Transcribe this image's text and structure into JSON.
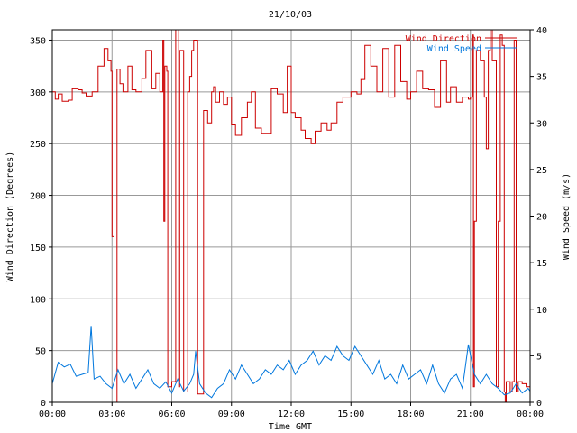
{
  "chart_data": {
    "type": "line",
    "title": "21/10/03",
    "xlabel": "Time GMT",
    "ylabel": "Wind Direction (Degrees)",
    "y2label": "Wind Speed (m/s)",
    "x_ticks": [
      "00:00",
      "03:00",
      "06:00",
      "09:00",
      "12:00",
      "15:00",
      "18:00",
      "21:00",
      "00:00"
    ],
    "x_range_hours": [
      0,
      24
    ],
    "ylim": [
      0,
      360
    ],
    "y_ticks": [
      "0",
      "50",
      "100",
      "150",
      "200",
      "250",
      "300",
      "350"
    ],
    "y2lim": [
      0,
      40
    ],
    "y2_ticks": [
      "0",
      "5",
      "10",
      "15",
      "20",
      "25",
      "30",
      "35",
      "40"
    ],
    "grid": true,
    "legend_position": "top-right",
    "colors": {
      "direction": "#cc0000",
      "speed": "#0077dd",
      "grid": "#999999"
    },
    "series": [
      {
        "name": "Wind Direction",
        "axis": "left",
        "style": "step",
        "x": [
          0,
          0.15,
          0.3,
          0.5,
          0.8,
          1.0,
          1.3,
          1.5,
          1.7,
          2.0,
          2.3,
          2.6,
          2.8,
          2.95,
          3.0,
          3.1,
          3.2,
          3.25,
          3.4,
          3.55,
          3.6,
          3.8,
          4.0,
          4.2,
          4.5,
          4.7,
          5.0,
          5.2,
          5.4,
          5.55,
          5.6,
          5.65,
          5.75,
          5.8,
          6.0,
          6.2,
          6.35,
          6.4,
          6.6,
          6.8,
          6.9,
          7.0,
          7.1,
          7.3,
          7.6,
          7.8,
          8.0,
          8.1,
          8.2,
          8.4,
          8.6,
          8.8,
          9.0,
          9.2,
          9.5,
          9.8,
          10.0,
          10.2,
          10.5,
          10.8,
          11.0,
          11.3,
          11.6,
          11.8,
          12.0,
          12.2,
          12.5,
          12.7,
          13.0,
          13.2,
          13.5,
          13.8,
          14.0,
          14.3,
          14.6,
          15.0,
          15.3,
          15.5,
          15.7,
          16.0,
          16.3,
          16.6,
          16.9,
          17.2,
          17.5,
          17.8,
          18.0,
          18.3,
          18.6,
          18.9,
          19.2,
          19.5,
          19.8,
          20.0,
          20.3,
          20.6,
          20.8,
          20.9,
          21.0,
          21.1,
          21.15,
          21.2,
          21.3,
          21.5,
          21.7,
          21.8,
          21.9,
          22.0,
          22.1,
          22.3,
          22.4,
          22.5,
          22.6,
          22.7,
          22.75,
          22.8,
          23.0,
          23.1,
          23.2,
          23.3,
          23.4,
          23.6,
          23.8,
          24.0
        ],
        "values": [
          300,
          293,
          298,
          291,
          292,
          303,
          302,
          299,
          296,
          300,
          325,
          342,
          330,
          320,
          160,
          0,
          0,
          322,
          308,
          300,
          300,
          325,
          302,
          300,
          313,
          340,
          303,
          318,
          300,
          350,
          175,
          325,
          320,
          15,
          20,
          360,
          15,
          340,
          10,
          300,
          315,
          340,
          350,
          8,
          282,
          270,
          300,
          305,
          290,
          300,
          288,
          295,
          268,
          258,
          275,
          290,
          300,
          265,
          260,
          260,
          303,
          298,
          280,
          325,
          280,
          275,
          263,
          255,
          250,
          262,
          270,
          263,
          270,
          290,
          295,
          300,
          298,
          312,
          345,
          325,
          300,
          342,
          295,
          345,
          310,
          293,
          300,
          320,
          303,
          302,
          285,
          330,
          290,
          305,
          290,
          295,
          295,
          293,
          295,
          355,
          15,
          175,
          340,
          330,
          295,
          245,
          340,
          360,
          330,
          15,
          175,
          355,
          345,
          10,
          0,
          20,
          10,
          20,
          350,
          10,
          20,
          18,
          15,
          18
        ]
      },
      {
        "name": "Wind Speed",
        "axis": "right",
        "style": "line",
        "x": [
          0,
          0.3,
          0.6,
          0.9,
          1.2,
          1.5,
          1.8,
          1.95,
          2.1,
          2.4,
          2.7,
          3.0,
          3.3,
          3.6,
          3.9,
          4.2,
          4.5,
          4.8,
          5.1,
          5.4,
          5.7,
          6.0,
          6.3,
          6.6,
          6.9,
          7.1,
          7.2,
          7.4,
          7.7,
          8.0,
          8.3,
          8.6,
          8.9,
          9.2,
          9.5,
          9.8,
          10.1,
          10.4,
          10.7,
          11.0,
          11.3,
          11.6,
          11.9,
          12.2,
          12.5,
          12.8,
          13.1,
          13.4,
          13.7,
          14.0,
          14.3,
          14.6,
          14.9,
          15.2,
          15.5,
          15.8,
          16.1,
          16.4,
          16.7,
          17.0,
          17.3,
          17.6,
          17.9,
          18.2,
          18.5,
          18.8,
          19.1,
          19.4,
          19.7,
          20.0,
          20.3,
          20.6,
          20.9,
          21.2,
          21.5,
          21.8,
          22.1,
          22.4,
          22.7,
          23.0,
          23.3,
          23.6,
          23.9,
          24.0
        ],
        "values": [
          2.0,
          4.3,
          3.8,
          4.1,
          2.8,
          3.0,
          3.2,
          8.2,
          2.5,
          2.8,
          2.0,
          1.5,
          3.5,
          2.0,
          3.0,
          1.5,
          2.5,
          3.5,
          2.0,
          1.5,
          2.2,
          1.0,
          2.5,
          1.2,
          2.0,
          3.0,
          5.5,
          2.0,
          1.0,
          0.5,
          1.5,
          2.0,
          3.5,
          2.5,
          4.0,
          3.0,
          2.0,
          2.5,
          3.5,
          3.0,
          4.0,
          3.5,
          4.5,
          3.0,
          4.0,
          4.5,
          5.5,
          4.0,
          5.0,
          4.5,
          6.0,
          5.0,
          4.5,
          6.0,
          5.0,
          4.0,
          3.0,
          4.5,
          2.5,
          3.0,
          2.0,
          4.0,
          2.5,
          3.0,
          3.5,
          2.0,
          4.0,
          2.0,
          1.0,
          2.5,
          3.0,
          1.5,
          6.2,
          3.0,
          2.0,
          3.0,
          2.0,
          1.5,
          0.8,
          1.0,
          2.0,
          1.0,
          1.5,
          1.2
        ]
      }
    ]
  }
}
